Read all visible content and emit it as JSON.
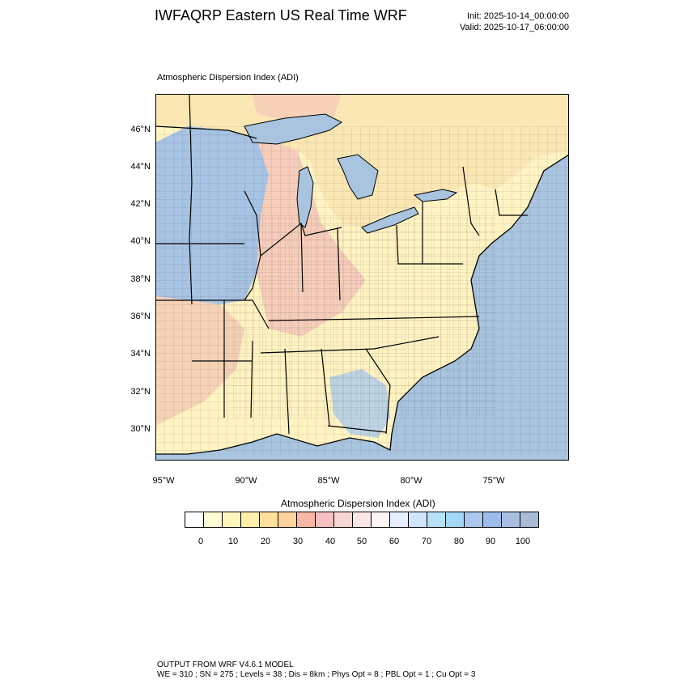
{
  "header": {
    "title": "IWFAQRP Eastern US Real Time WRF",
    "init": "Init: 2025-10-14_00:00:00",
    "valid": "Valid: 2025-10-17_06:00:00"
  },
  "map": {
    "field_title": "Atmospheric Dispersion Index   (ADI)",
    "lat_labels": [
      "46°N",
      "44°N",
      "42°N",
      "40°N",
      "38°N",
      "36°N",
      "34°N",
      "32°N",
      "30°N"
    ],
    "lon_labels": [
      "95°W",
      "90°W",
      "85°W",
      "80°W",
      "75°W"
    ],
    "colors": {
      "ocean": "#a8c4de",
      "land_low": "#fff3c2",
      "land_mid": "#f4c6b8",
      "land_high": "#a7c3e3",
      "canada": "#fbe7b4"
    }
  },
  "colorbar": {
    "title": "Atmospheric Dispersion Index  (ADI)",
    "ticks": [
      "0",
      "10",
      "20",
      "30",
      "40",
      "50",
      "60",
      "70",
      "80",
      "90",
      "100"
    ],
    "colors": [
      "#ffffff",
      "#fffbd6",
      "#fff5bf",
      "#ffefa9",
      "#ffe09b",
      "#ffd49c",
      "#f8b7a4",
      "#f4c1c0",
      "#f8d6d6",
      "#fbe6e6",
      "#fdf4f4",
      "#e6eeff",
      "#cfe5fb",
      "#b7e2f8",
      "#a3d7f5",
      "#a9c8f1",
      "#9dbdec",
      "#a9bfe1",
      "#a9bcd6"
    ]
  },
  "footer": {
    "line1": "OUTPUT FROM WRF V4.6.1 MODEL",
    "line2": "WE = 310 ; SN = 275 ; Levels = 38 ; Dis = 8km ; Phys Opt = 8 ; PBL Opt = 1 ; Cu Opt = 3"
  }
}
